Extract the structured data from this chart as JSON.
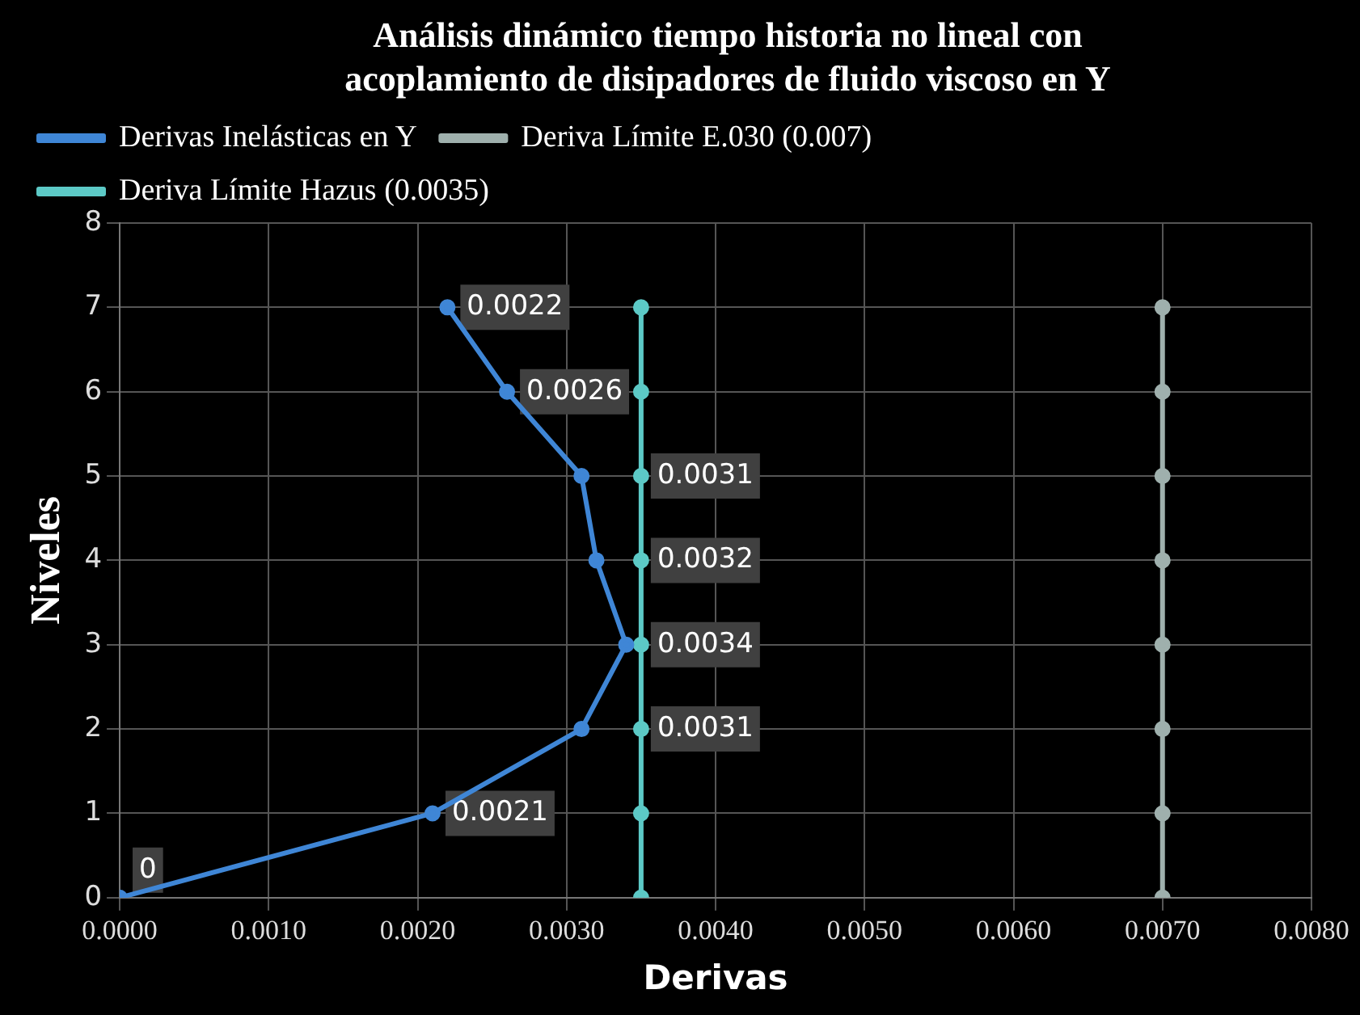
{
  "chart_data": {
    "type": "line",
    "title": "Análisis dinámico tiempo historia no lineal con acoplamiento de disipadores de fluido viscoso en Y",
    "xlabel": "Derivas",
    "ylabel": "Niveles",
    "series": [
      {
        "name": "Derivas Inelásticas en Y",
        "color": "#3f86d6",
        "x": [
          0,
          0.0021,
          0.0031,
          0.0034,
          0.0032,
          0.0031,
          0.0026,
          0.0022
        ],
        "values": [
          0,
          1,
          2,
          3,
          4,
          5,
          6,
          7
        ]
      },
      {
        "name": "Deriva Límite E.030 (0.007)",
        "color": "#9fb0ad",
        "x": [
          0.007,
          0.007,
          0.007,
          0.007,
          0.007,
          0.007,
          0.007,
          0.007
        ],
        "values": [
          0,
          1,
          2,
          3,
          4,
          5,
          6,
          7
        ]
      },
      {
        "name": "Deriva Límite Hazus (0.0035)",
        "color": "#5cc9c6",
        "x": [
          0.0035,
          0.0035,
          0.0035,
          0.0035,
          0.0035,
          0.0035,
          0.0035,
          0.0035
        ],
        "values": [
          0,
          1,
          2,
          3,
          4,
          5,
          6,
          7
        ]
      }
    ],
    "annotations": [
      {
        "text": "0",
        "x": 0,
        "y": 0
      },
      {
        "text": "0.0021",
        "x": 0.0021,
        "y": 1
      },
      {
        "text": "0.0031",
        "x": 0.0031,
        "y": 2
      },
      {
        "text": "0.0034",
        "x": 0.0034,
        "y": 3
      },
      {
        "text": "0.0032",
        "x": 0.0032,
        "y": 4
      },
      {
        "text": "0.0031",
        "x": 0.0031,
        "y": 5
      },
      {
        "text": "0.0026",
        "x": 0.0026,
        "y": 6
      },
      {
        "text": "0.0022",
        "x": 0.0022,
        "y": 7
      }
    ],
    "xlim": [
      0,
      0.008
    ],
    "xticks": [
      {
        "value": 0,
        "label": "0.0000"
      },
      {
        "value": 0.001,
        "label": "0.0010"
      },
      {
        "value": 0.002,
        "label": "0.0020"
      },
      {
        "value": 0.003,
        "label": "0.0030"
      },
      {
        "value": 0.004,
        "label": "0.0040"
      },
      {
        "value": 0.005,
        "label": "0.0050"
      },
      {
        "value": 0.006,
        "label": "0.0060"
      },
      {
        "value": 0.007,
        "label": "0.0070"
      },
      {
        "value": 0.008,
        "label": "0.0080"
      }
    ],
    "ylim": [
      0,
      8
    ],
    "yticks": [
      0,
      1,
      2,
      3,
      4,
      5,
      6,
      7,
      8
    ],
    "grid": true,
    "legend": "top",
    "marker": "circle",
    "line_style": "solid"
  }
}
